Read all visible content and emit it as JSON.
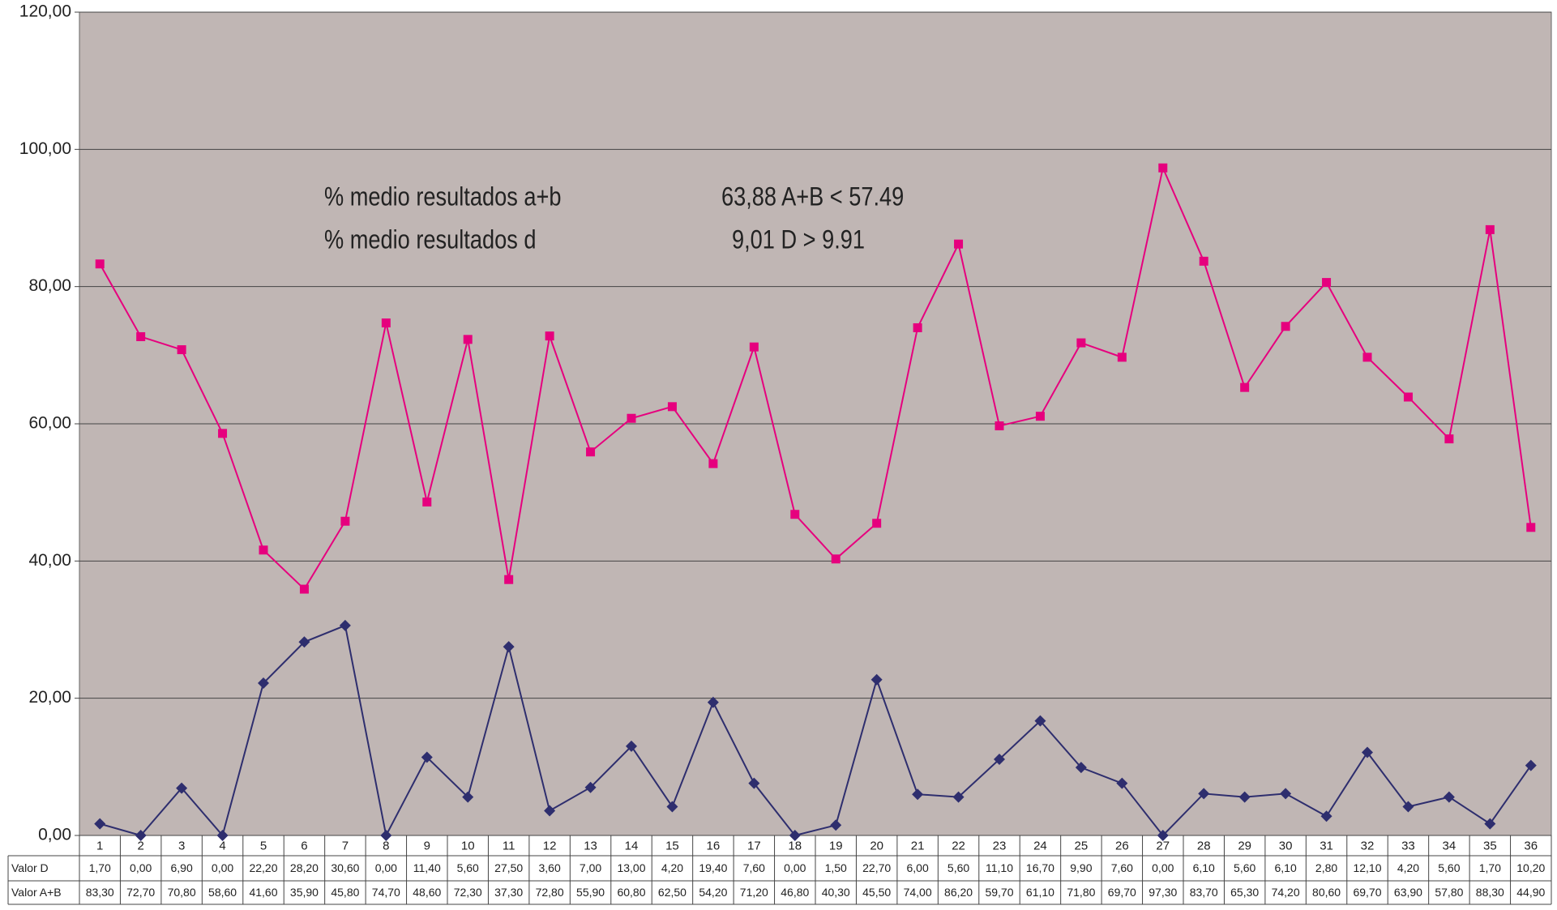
{
  "chart_data": {
    "type": "line",
    "annotations": [
      "% medio resultados a+b",
      "63,88 A+B < 57.49",
      "% medio resultados d",
      "9,01 D > 9.91"
    ],
    "categories": [
      1,
      2,
      3,
      4,
      5,
      6,
      7,
      8,
      9,
      10,
      11,
      12,
      13,
      14,
      15,
      16,
      17,
      18,
      19,
      20,
      21,
      22,
      23,
      24,
      25,
      26,
      27,
      28,
      29,
      30,
      31,
      32,
      33,
      34,
      35,
      36
    ],
    "series": [
      {
        "name": "Valor D",
        "color": "#2e2e6e",
        "marker": "diamond",
        "values": [
          1.7,
          0,
          6.9,
          0,
          22.2,
          28.2,
          30.6,
          0,
          11.4,
          5.6,
          27.5,
          3.6,
          7,
          13,
          4.2,
          19.4,
          7.6,
          0,
          1.5,
          22.7,
          6,
          5.6,
          11.1,
          16.7,
          9.9,
          7.6,
          0,
          6.1,
          5.6,
          6.1,
          2.8,
          12.1,
          4.2,
          5.6,
          1.7,
          10.2
        ],
        "value_labels": [
          "1,70",
          "0,00",
          "6,90",
          "0,00",
          "22,20",
          "28,20",
          "30,60",
          "0,00",
          "11,40",
          "5,60",
          "27,50",
          "3,60",
          "7,00",
          "13,00",
          "4,20",
          "19,40",
          "7,60",
          "0,00",
          "1,50",
          "22,70",
          "6,00",
          "5,60",
          "11,10",
          "16,70",
          "9,90",
          "7,60",
          "0,00",
          "6,10",
          "5,60",
          "6,10",
          "2,80",
          "12,10",
          "4,20",
          "5,60",
          "1,70",
          "10,20"
        ]
      },
      {
        "name": "Valor A+B",
        "color": "#e6007e",
        "marker": "square",
        "values": [
          83.3,
          72.7,
          70.8,
          58.6,
          41.6,
          35.9,
          45.8,
          74.7,
          48.6,
          72.3,
          37.3,
          72.8,
          55.9,
          60.8,
          62.5,
          54.2,
          71.2,
          46.8,
          40.3,
          45.5,
          74,
          86.2,
          59.7,
          61.1,
          71.8,
          69.7,
          97.3,
          83.7,
          65.3,
          74.2,
          80.6,
          69.7,
          63.9,
          57.8,
          88.3,
          44.9
        ],
        "value_labels": [
          "83,30",
          "72,70",
          "70,80",
          "58,60",
          "41,60",
          "35,90",
          "45,80",
          "74,70",
          "48,60",
          "72,30",
          "37,30",
          "72,80",
          "55,90",
          "60,80",
          "62,50",
          "54,20",
          "71,20",
          "46,80",
          "40,30",
          "45,50",
          "74,00",
          "86,20",
          "59,70",
          "61,10",
          "71,80",
          "69,70",
          "97,30",
          "83,70",
          "65,30",
          "74,20",
          "80,60",
          "69,70",
          "63,90",
          "57,80",
          "88,30",
          "44,90"
        ]
      }
    ],
    "ylim": [
      0,
      120
    ],
    "yticks": [
      {
        "value": 0,
        "label": "0,00"
      },
      {
        "value": 20,
        "label": "20,00"
      },
      {
        "value": 40,
        "label": "40,00"
      },
      {
        "value": 60,
        "label": "60,00"
      },
      {
        "value": 80,
        "label": "80,00"
      },
      {
        "value": 100,
        "label": "100,00"
      },
      {
        "value": 120,
        "label": "120,00"
      }
    ],
    "grid": true,
    "plot_background": "#c0b6b4"
  }
}
